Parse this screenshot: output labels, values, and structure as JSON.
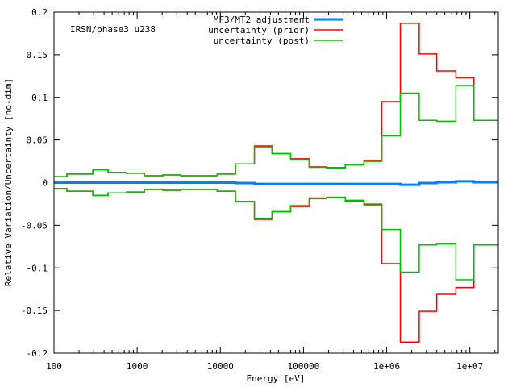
{
  "chart_data": {
    "type": "line",
    "title": "",
    "annotation": "IRSN/phase3 u238",
    "xlabel": "Energy [eV]",
    "ylabel": "Relative Variation/Uncertainty [no-dim]",
    "xscale": "log",
    "xlim": [
      100,
      22000000
    ],
    "ylim": [
      -0.2,
      0.2
    ],
    "grid": false,
    "legend_position": "top-right",
    "x_ticks": [
      {
        "value": 100,
        "label": "100"
      },
      {
        "value": 1000,
        "label": "1000"
      },
      {
        "value": 10000,
        "label": "10000"
      },
      {
        "value": 100000,
        "label": "100000"
      },
      {
        "value": 1000000,
        "label": "1e+06"
      },
      {
        "value": 10000000,
        "label": "1e+07"
      }
    ],
    "y_ticks": [
      {
        "value": 0.2,
        "label": "0.2"
      },
      {
        "value": 0.15,
        "label": "0.15"
      },
      {
        "value": 0.1,
        "label": "0.1"
      },
      {
        "value": 0.05,
        "label": "0.05"
      },
      {
        "value": 0,
        "label": "0"
      },
      {
        "value": -0.05,
        "label": "-0.05"
      },
      {
        "value": -0.1,
        "label": "-0.1"
      },
      {
        "value": -0.15,
        "label": "-0.15"
      },
      {
        "value": -0.2,
        "label": "-0.2"
      }
    ],
    "bin_edges": [
      100,
      143,
      293,
      447,
      748,
      1222,
      2040,
      3340,
      9150,
      15200,
      25700,
      41800,
      70000,
      117000,
      190000,
      318000,
      534000,
      875000,
      1460000,
      2460000,
      4000000,
      6800000,
      11200000,
      22000000
    ],
    "series": [
      {
        "name": "MF3/MT2 adjustment",
        "color": "#0080ff",
        "symmetric": false,
        "values": [
          0,
          0,
          0,
          0,
          0,
          0,
          0,
          0,
          0,
          -0.0005,
          -0.0015,
          -0.0015,
          -0.0015,
          -0.0015,
          -0.0015,
          -0.0015,
          -0.0015,
          -0.0015,
          -0.0025,
          -0.0005,
          0.0005,
          0.0015,
          0.0005
        ]
      },
      {
        "name": "uncertainty (prior)",
        "color": "#ff0000",
        "symmetric": true,
        "values": [
          0.007,
          0.01,
          0.015,
          0.012,
          0.011,
          0.008,
          0.009,
          0.008,
          0.01,
          0.022,
          0.043,
          0.034,
          0.028,
          0.0186,
          0.0176,
          0.0214,
          0.026,
          0.095,
          0.187,
          0.151,
          0.131,
          0.123,
          0.073
        ]
      },
      {
        "name": "uncertainty (post)",
        "color": "#00c000",
        "symmetric": true,
        "values": [
          0.007,
          0.01,
          0.015,
          0.012,
          0.011,
          0.008,
          0.009,
          0.008,
          0.01,
          0.022,
          0.042,
          0.034,
          0.027,
          0.018,
          0.017,
          0.0207,
          0.025,
          0.055,
          0.105,
          0.073,
          0.072,
          0.114,
          0.073
        ]
      }
    ]
  }
}
